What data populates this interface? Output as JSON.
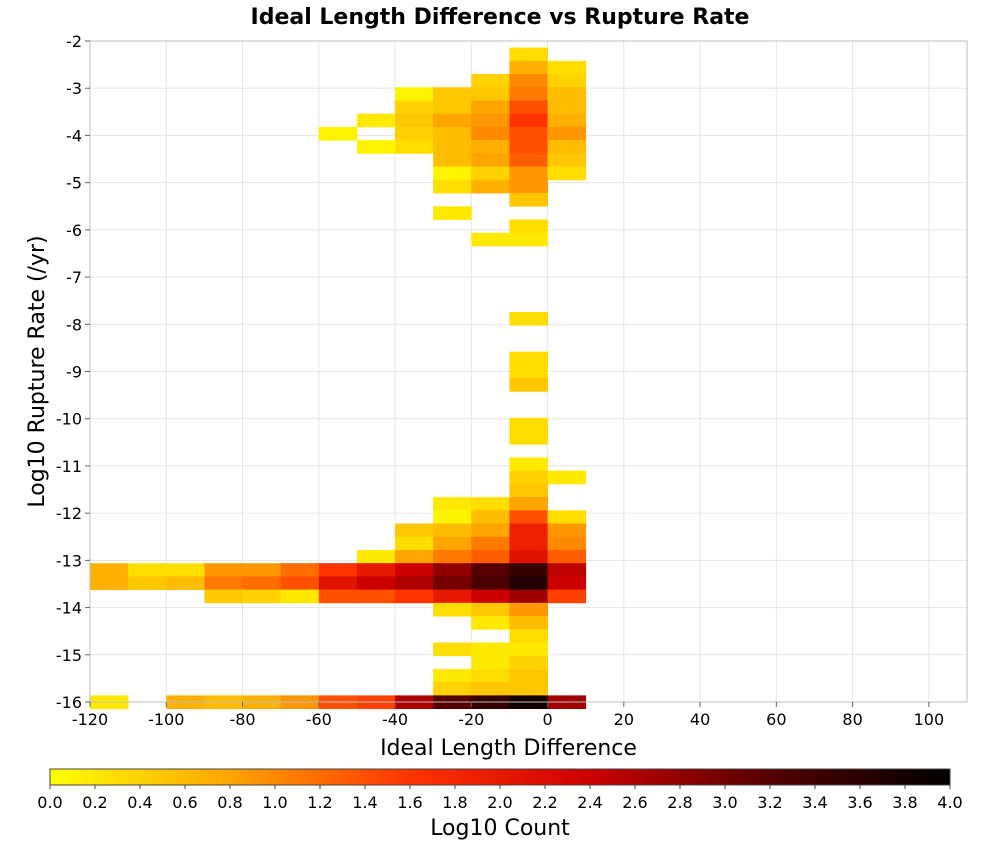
{
  "chart_data": {
    "type": "heatmap",
    "title": "Ideal Length Difference vs Rupture Rate",
    "xlabel": "Ideal Length Difference",
    "ylabel": "Log10 Rupture Rate (/yr)",
    "xlim": [
      -120,
      110
    ],
    "ylim": [
      -16,
      -2
    ],
    "xticks": [
      -120,
      -100,
      -80,
      -60,
      -40,
      -20,
      0,
      20,
      40,
      60,
      80,
      100
    ],
    "yticks": [
      -2,
      -3,
      -4,
      -5,
      -6,
      -7,
      -8,
      -9,
      -10,
      -11,
      -12,
      -13,
      -14,
      -15,
      -16
    ],
    "grid": true,
    "colorbar": {
      "label": "Log10 Count",
      "min": 0.0,
      "max": 4.0,
      "ticks": [
        "0.0",
        "0.2",
        "0.4",
        "0.6",
        "0.8",
        "1.0",
        "1.2",
        "1.4",
        "1.6",
        "1.8",
        "2.0",
        "2.2",
        "2.4",
        "2.6",
        "2.8",
        "3.0",
        "3.2",
        "3.4",
        "3.6",
        "3.8",
        "4.0"
      ],
      "colors": [
        "#ffff00",
        "#ffa500",
        "#ff3300",
        "#cc0000",
        "#550000",
        "#000000"
      ]
    },
    "cell_width": 10,
    "cell_height": 0.28,
    "cells": [
      {
        "x": -10,
        "y": -2.14,
        "v": 0.3
      },
      {
        "x": -10,
        "y": -2.42,
        "v": 0.7
      },
      {
        "x": 0,
        "y": -2.42,
        "v": 0.3
      },
      {
        "x": -20,
        "y": -2.7,
        "v": 0.4
      },
      {
        "x": -10,
        "y": -2.7,
        "v": 1.0
      },
      {
        "x": 0,
        "y": -2.7,
        "v": 0.4
      },
      {
        "x": -40,
        "y": -2.98,
        "v": 0.1
      },
      {
        "x": -30,
        "y": -2.98,
        "v": 0.5
      },
      {
        "x": -20,
        "y": -2.98,
        "v": 0.5
      },
      {
        "x": -10,
        "y": -2.98,
        "v": 1.1
      },
      {
        "x": 0,
        "y": -2.98,
        "v": 0.6
      },
      {
        "x": -40,
        "y": -3.26,
        "v": 0.4
      },
      {
        "x": -30,
        "y": -3.26,
        "v": 0.5
      },
      {
        "x": -20,
        "y": -3.26,
        "v": 0.8
      },
      {
        "x": -10,
        "y": -3.26,
        "v": 1.4
      },
      {
        "x": 0,
        "y": -3.26,
        "v": 0.6
      },
      {
        "x": -50,
        "y": -3.54,
        "v": 0.2
      },
      {
        "x": -40,
        "y": -3.54,
        "v": 0.5
      },
      {
        "x": -30,
        "y": -3.54,
        "v": 0.8
      },
      {
        "x": -20,
        "y": -3.54,
        "v": 0.9
      },
      {
        "x": -10,
        "y": -3.54,
        "v": 1.6
      },
      {
        "x": 0,
        "y": -3.54,
        "v": 0.7
      },
      {
        "x": -60,
        "y": -3.82,
        "v": 0.1
      },
      {
        "x": -40,
        "y": -3.82,
        "v": 0.4
      },
      {
        "x": -30,
        "y": -3.82,
        "v": 0.6
      },
      {
        "x": -20,
        "y": -3.82,
        "v": 1.0
      },
      {
        "x": -10,
        "y": -3.82,
        "v": 1.4
      },
      {
        "x": 0,
        "y": -3.82,
        "v": 0.9
      },
      {
        "x": -50,
        "y": -4.1,
        "v": 0.1
      },
      {
        "x": -40,
        "y": -4.1,
        "v": 0.3
      },
      {
        "x": -30,
        "y": -4.1,
        "v": 0.6
      },
      {
        "x": -20,
        "y": -4.1,
        "v": 0.7
      },
      {
        "x": -10,
        "y": -4.1,
        "v": 1.4
      },
      {
        "x": 0,
        "y": -4.1,
        "v": 0.6
      },
      {
        "x": -30,
        "y": -4.38,
        "v": 0.6
      },
      {
        "x": -20,
        "y": -4.38,
        "v": 0.8
      },
      {
        "x": -10,
        "y": -4.38,
        "v": 1.3
      },
      {
        "x": 0,
        "y": -4.38,
        "v": 0.5
      },
      {
        "x": -30,
        "y": -4.66,
        "v": 0.1
      },
      {
        "x": -20,
        "y": -4.66,
        "v": 0.4
      },
      {
        "x": -10,
        "y": -4.66,
        "v": 0.9
      },
      {
        "x": 0,
        "y": -4.66,
        "v": 0.3
      },
      {
        "x": -30,
        "y": -4.94,
        "v": 0.3
      },
      {
        "x": -20,
        "y": -4.94,
        "v": 0.7
      },
      {
        "x": -10,
        "y": -4.94,
        "v": 0.9
      },
      {
        "x": -10,
        "y": -5.22,
        "v": 0.5
      },
      {
        "x": -30,
        "y": -5.5,
        "v": 0.2
      },
      {
        "x": -10,
        "y": -5.78,
        "v": 0.3
      },
      {
        "x": -20,
        "y": -6.06,
        "v": 0.2
      },
      {
        "x": -10,
        "y": -6.06,
        "v": 0.2
      },
      {
        "x": -10,
        "y": -7.74,
        "v": 0.3
      },
      {
        "x": -10,
        "y": -8.58,
        "v": 0.3
      },
      {
        "x": -10,
        "y": -8.86,
        "v": 0.3
      },
      {
        "x": -10,
        "y": -9.14,
        "v": 0.5
      },
      {
        "x": -10,
        "y": -9.98,
        "v": 0.3
      },
      {
        "x": -10,
        "y": -10.26,
        "v": 0.3
      },
      {
        "x": -10,
        "y": -10.82,
        "v": 0.2
      },
      {
        "x": -10,
        "y": -11.1,
        "v": 0.4
      },
      {
        "x": 0,
        "y": -11.1,
        "v": 0.2
      },
      {
        "x": -10,
        "y": -11.38,
        "v": 0.5
      },
      {
        "x": -30,
        "y": -11.66,
        "v": 0.2
      },
      {
        "x": -20,
        "y": -11.66,
        "v": 0.3
      },
      {
        "x": -10,
        "y": -11.66,
        "v": 0.8
      },
      {
        "x": -30,
        "y": -11.94,
        "v": 0.1
      },
      {
        "x": -20,
        "y": -11.94,
        "v": 0.6
      },
      {
        "x": -10,
        "y": -11.94,
        "v": 1.4
      },
      {
        "x": 0,
        "y": -11.94,
        "v": 0.3
      },
      {
        "x": -40,
        "y": -12.22,
        "v": 0.5
      },
      {
        "x": -30,
        "y": -12.22,
        "v": 0.6
      },
      {
        "x": -20,
        "y": -12.22,
        "v": 0.8
      },
      {
        "x": -10,
        "y": -12.22,
        "v": 1.9
      },
      {
        "x": 0,
        "y": -12.22,
        "v": 0.9
      },
      {
        "x": -40,
        "y": -12.5,
        "v": 0.3
      },
      {
        "x": -30,
        "y": -12.5,
        "v": 0.8
      },
      {
        "x": -20,
        "y": -12.5,
        "v": 1.1
      },
      {
        "x": -10,
        "y": -12.5,
        "v": 1.9
      },
      {
        "x": 0,
        "y": -12.5,
        "v": 1.0
      },
      {
        "x": -50,
        "y": -12.78,
        "v": 0.2
      },
      {
        "x": -40,
        "y": -12.78,
        "v": 0.8
      },
      {
        "x": -30,
        "y": -12.78,
        "v": 1.1
      },
      {
        "x": -20,
        "y": -12.78,
        "v": 1.3
      },
      {
        "x": -10,
        "y": -12.78,
        "v": 2.1
      },
      {
        "x": 0,
        "y": -12.78,
        "v": 1.3
      },
      {
        "x": -120,
        "y": -13.06,
        "v": 0.7
      },
      {
        "x": -110,
        "y": -13.06,
        "v": 0.3
      },
      {
        "x": -100,
        "y": -13.06,
        "v": 0.3
      },
      {
        "x": -90,
        "y": -13.06,
        "v": 0.9
      },
      {
        "x": -80,
        "y": -13.06,
        "v": 0.9
      },
      {
        "x": -70,
        "y": -13.06,
        "v": 1.2
      },
      {
        "x": -60,
        "y": -13.06,
        "v": 1.6
      },
      {
        "x": -50,
        "y": -13.06,
        "v": 2.0
      },
      {
        "x": -40,
        "y": -13.06,
        "v": 2.4
      },
      {
        "x": -30,
        "y": -13.06,
        "v": 2.8
      },
      {
        "x": -20,
        "y": -13.06,
        "v": 3.2
      },
      {
        "x": -10,
        "y": -13.06,
        "v": 3.5
      },
      {
        "x": 0,
        "y": -13.06,
        "v": 2.5
      },
      {
        "x": -120,
        "y": -13.34,
        "v": 0.7
      },
      {
        "x": -110,
        "y": -13.34,
        "v": 0.5
      },
      {
        "x": -100,
        "y": -13.34,
        "v": 0.6
      },
      {
        "x": -90,
        "y": -13.34,
        "v": 1.1
      },
      {
        "x": -80,
        "y": -13.34,
        "v": 1.2
      },
      {
        "x": -70,
        "y": -13.34,
        "v": 1.4
      },
      {
        "x": -60,
        "y": -13.34,
        "v": 2.1
      },
      {
        "x": -50,
        "y": -13.34,
        "v": 2.4
      },
      {
        "x": -40,
        "y": -13.34,
        "v": 2.6
      },
      {
        "x": -30,
        "y": -13.34,
        "v": 3.0
      },
      {
        "x": -20,
        "y": -13.34,
        "v": 3.3
      },
      {
        "x": -10,
        "y": -13.34,
        "v": 3.7
      },
      {
        "x": 0,
        "y": -13.34,
        "v": 2.4
      },
      {
        "x": -90,
        "y": -13.62,
        "v": 0.5
      },
      {
        "x": -80,
        "y": -13.62,
        "v": 0.4
      },
      {
        "x": -70,
        "y": -13.62,
        "v": 0.2
      },
      {
        "x": -60,
        "y": -13.62,
        "v": 1.4
      },
      {
        "x": -50,
        "y": -13.62,
        "v": 1.4
      },
      {
        "x": -40,
        "y": -13.62,
        "v": 1.6
      },
      {
        "x": -30,
        "y": -13.62,
        "v": 2.0
      },
      {
        "x": -20,
        "y": -13.62,
        "v": 2.4
      },
      {
        "x": -10,
        "y": -13.62,
        "v": 2.7
      },
      {
        "x": 0,
        "y": -13.62,
        "v": 1.5
      },
      {
        "x": -30,
        "y": -13.9,
        "v": 0.3
      },
      {
        "x": -20,
        "y": -13.9,
        "v": 0.5
      },
      {
        "x": -10,
        "y": -13.9,
        "v": 0.9
      },
      {
        "x": -20,
        "y": -14.18,
        "v": 0.2
      },
      {
        "x": -10,
        "y": -14.18,
        "v": 0.6
      },
      {
        "x": -10,
        "y": -14.46,
        "v": 0.3
      },
      {
        "x": -30,
        "y": -14.74,
        "v": 0.3
      },
      {
        "x": -20,
        "y": -14.74,
        "v": 0.2
      },
      {
        "x": -10,
        "y": -14.74,
        "v": 0.2
      },
      {
        "x": -20,
        "y": -15.02,
        "v": 0.2
      },
      {
        "x": -10,
        "y": -15.02,
        "v": 0.4
      },
      {
        "x": -30,
        "y": -15.3,
        "v": 0.2
      },
      {
        "x": -20,
        "y": -15.3,
        "v": 0.3
      },
      {
        "x": -10,
        "y": -15.3,
        "v": 0.5
      },
      {
        "x": -30,
        "y": -15.58,
        "v": 0.4
      },
      {
        "x": -20,
        "y": -15.58,
        "v": 0.5
      },
      {
        "x": -10,
        "y": -15.58,
        "v": 0.5
      },
      {
        "x": -120,
        "y": -15.86,
        "v": 0.2
      },
      {
        "x": -100,
        "y": -15.86,
        "v": 0.7
      },
      {
        "x": -90,
        "y": -15.86,
        "v": 0.6
      },
      {
        "x": -80,
        "y": -15.86,
        "v": 0.7
      },
      {
        "x": -70,
        "y": -15.86,
        "v": 0.9
      },
      {
        "x": -60,
        "y": -15.86,
        "v": 1.4
      },
      {
        "x": -50,
        "y": -15.86,
        "v": 1.5
      },
      {
        "x": -40,
        "y": -15.86,
        "v": 2.6
      },
      {
        "x": -30,
        "y": -15.86,
        "v": 3.2
      },
      {
        "x": -20,
        "y": -15.86,
        "v": 3.5
      },
      {
        "x": -10,
        "y": -15.86,
        "v": 3.8
      },
      {
        "x": 0,
        "y": -15.86,
        "v": 2.7
      }
    ]
  }
}
